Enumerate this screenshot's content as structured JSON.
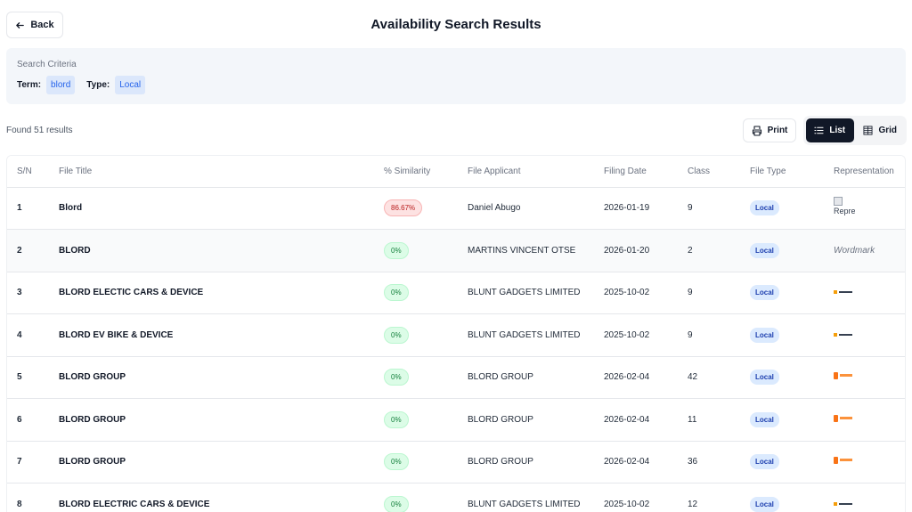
{
  "header": {
    "back_label": "Back",
    "title": "Availability Search Results"
  },
  "criteria": {
    "label": "Search Criteria",
    "term_key": "Term:",
    "term_value": "blord",
    "type_key": "Type:",
    "type_value": "Local"
  },
  "results": {
    "found_text": "Found 51 results"
  },
  "toolbar": {
    "print_label": "Print",
    "list_label": "List",
    "grid_label": "Grid",
    "active_view": "List"
  },
  "table": {
    "headers": [
      "S/N",
      "File Title",
      "% Similarity",
      "File Applicant",
      "Filing Date",
      "Class",
      "File Type",
      "Representation"
    ],
    "rows": [
      {
        "sn": "1",
        "title": "Blord",
        "similarity": "86.67%",
        "applicant": "Daniel Abugo",
        "date": "2026-01-19",
        "class": "9",
        "type": "Local",
        "rep_kind": "broken",
        "rep_text": "Repre"
      },
      {
        "sn": "2",
        "title": "BLORD",
        "similarity": "0%",
        "applicant": "MARTINS VINCENT OTSE",
        "date": "2026-01-20",
        "class": "2",
        "type": "Local",
        "rep_kind": "wordmark",
        "rep_text": "Wordmark"
      },
      {
        "sn": "3",
        "title": "BLORD ELECTIC CARS & DEVICE",
        "similarity": "0%",
        "applicant": "BLUNT GADGETS LIMITED",
        "date": "2025-10-02",
        "class": "9",
        "type": "Local",
        "rep_kind": "logo-dark",
        "rep_text": ""
      },
      {
        "sn": "4",
        "title": "BLORD EV BIKE & DEVICE",
        "similarity": "0%",
        "applicant": "BLUNT GADGETS LIMITED",
        "date": "2025-10-02",
        "class": "9",
        "type": "Local",
        "rep_kind": "logo-dark",
        "rep_text": ""
      },
      {
        "sn": "5",
        "title": "BLORD GROUP",
        "similarity": "0%",
        "applicant": "BLORD GROUP",
        "date": "2026-02-04",
        "class": "42",
        "type": "Local",
        "rep_kind": "logo-orange",
        "rep_text": ""
      },
      {
        "sn": "6",
        "title": "BLORD GROUP",
        "similarity": "0%",
        "applicant": "BLORD GROUP",
        "date": "2026-02-04",
        "class": "11",
        "type": "Local",
        "rep_kind": "logo-orange",
        "rep_text": ""
      },
      {
        "sn": "7",
        "title": "BLORD GROUP",
        "similarity": "0%",
        "applicant": "BLORD GROUP",
        "date": "2026-02-04",
        "class": "36",
        "type": "Local",
        "rep_kind": "logo-orange",
        "rep_text": ""
      },
      {
        "sn": "8",
        "title": "BLORD ELECTRIC CARS & DEVICE",
        "similarity": "0%",
        "applicant": "BLUNT GADGETS LIMITED",
        "date": "2025-10-02",
        "class": "12",
        "type": "Local",
        "rep_kind": "logo-dark",
        "rep_text": ""
      }
    ]
  },
  "colors": {
    "high_similarity": "#b91c1c",
    "zero_similarity": "#15803d",
    "type_badge": "#1e40af",
    "active_toggle": "#111827"
  }
}
